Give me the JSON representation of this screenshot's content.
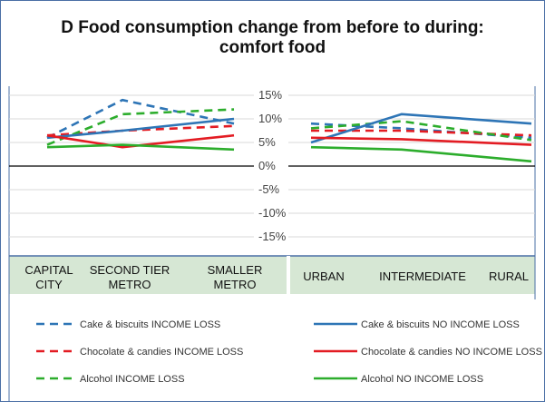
{
  "title_line1": "D Food consumption change from before to during:",
  "title_line2": "comfort food",
  "colors": {
    "blue": "#2e75b6",
    "red": "#e31c23",
    "green": "#2cad2c",
    "band": "#d6e7d4",
    "grid": "#d9d9d9",
    "axis": "#000000",
    "frame": "#4a6fa5"
  },
  "chart_data": [
    {
      "type": "line",
      "categories": [
        "CAPITAL CITY",
        "SECOND TIER METRO",
        "SMALLER METRO"
      ],
      "ylim": [
        -0.15,
        0.15
      ],
      "yticks": [
        "15%",
        "10%",
        "5%",
        "0%",
        "-5%",
        "-10%",
        "-15%"
      ],
      "grid": true,
      "series": [
        {
          "name": "Cake & biscuits INCOME LOSS",
          "color": "blue",
          "dashed": true,
          "values": [
            0.06,
            0.14,
            0.09
          ]
        },
        {
          "name": "Chocolate & candies INCOME LOSS",
          "color": "red",
          "dashed": true,
          "values": [
            0.065,
            0.075,
            0.085
          ]
        },
        {
          "name": "Alcohol INCOME LOSS",
          "color": "green",
          "dashed": true,
          "values": [
            0.045,
            0.11,
            0.12
          ]
        },
        {
          "name": "Cake & biscuits NO INCOME LOSS",
          "color": "blue",
          "dashed": false,
          "values": [
            0.06,
            0.075,
            0.1
          ]
        },
        {
          "name": "Chocolate & candies NO INCOME LOSS",
          "color": "red",
          "dashed": false,
          "values": [
            0.065,
            0.04,
            0.065
          ]
        },
        {
          "name": "Alcohol NO INCOME LOSS",
          "color": "green",
          "dashed": false,
          "values": [
            0.04,
            0.045,
            0.035
          ]
        }
      ]
    },
    {
      "type": "line",
      "categories": [
        "URBAN",
        "INTERMEDIATE",
        "RURAL"
      ],
      "ylim": [
        -0.15,
        0.15
      ],
      "grid": true,
      "series": [
        {
          "name": "Cake & biscuits INCOME LOSS",
          "color": "blue",
          "dashed": true,
          "values": [
            0.09,
            0.08,
            0.06
          ]
        },
        {
          "name": "Chocolate & candies INCOME LOSS",
          "color": "red",
          "dashed": true,
          "values": [
            0.075,
            0.075,
            0.065
          ]
        },
        {
          "name": "Alcohol INCOME LOSS",
          "color": "green",
          "dashed": true,
          "values": [
            0.08,
            0.095,
            0.055
          ]
        },
        {
          "name": "Cake & biscuits NO INCOME LOSS",
          "color": "blue",
          "dashed": false,
          "values": [
            0.05,
            0.11,
            0.09
          ]
        },
        {
          "name": "Chocolate & candies NO INCOME LOSS",
          "color": "red",
          "dashed": false,
          "values": [
            0.06,
            0.057,
            0.045
          ]
        },
        {
          "name": "Alcohol NO INCOME LOSS",
          "color": "green",
          "dashed": false,
          "values": [
            0.04,
            0.035,
            0.01
          ]
        }
      ]
    }
  ],
  "legend": [
    {
      "label": "Cake & biscuits INCOME LOSS",
      "color": "blue",
      "dashed": true
    },
    {
      "label": "Cake & biscuits NO INCOME LOSS",
      "color": "blue",
      "dashed": false
    },
    {
      "label": "Chocolate & candies INCOME LOSS",
      "color": "red",
      "dashed": true
    },
    {
      "label": "Chocolate & candies NO INCOME LOSS",
      "color": "red",
      "dashed": false
    },
    {
      "label": "Alcohol INCOME LOSS",
      "color": "green",
      "dashed": true
    },
    {
      "label": "Alcohol NO INCOME LOSS",
      "color": "green",
      "dashed": false
    }
  ]
}
